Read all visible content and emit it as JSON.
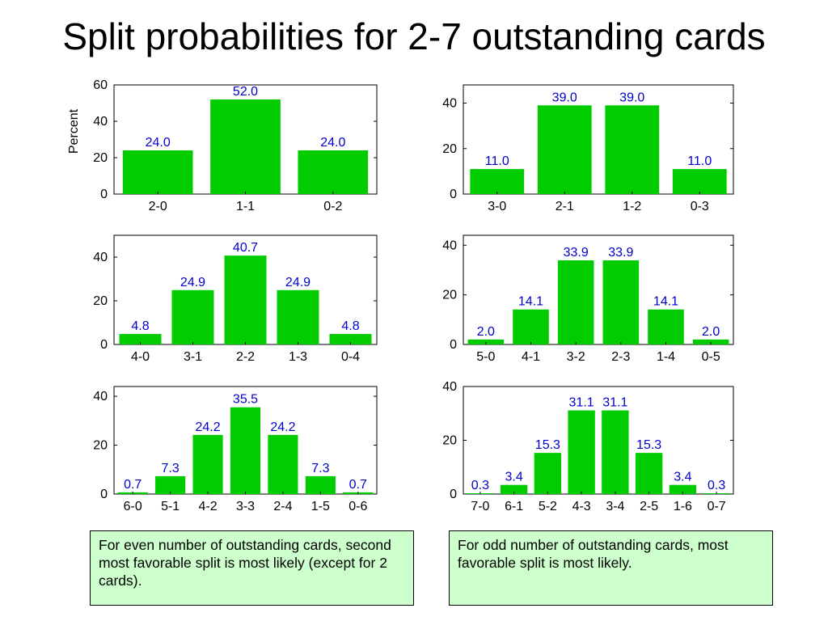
{
  "title": "Split probabilities for 2-7 outstanding cards",
  "colors": {
    "bar": "#00cc00",
    "value_label": "#0000cc",
    "axis": "#000000"
  },
  "notes": {
    "even": "For even number of outstanding cards, second most favorable split is most likely (except for 2 cards).",
    "odd": "For odd number of outstanding cards, most favorable split is most likely."
  },
  "chart_data": [
    {
      "type": "bar",
      "title": "",
      "xlabel": "",
      "ylabel": "Percent",
      "categories": [
        "2-0",
        "1-1",
        "0-2"
      ],
      "values": [
        24.0,
        52.0,
        24.0
      ],
      "value_labels": [
        "24.0",
        "52.0",
        "24.0"
      ],
      "ylim": [
        0,
        60
      ],
      "yticks": [
        0,
        20,
        40,
        60
      ],
      "grid": false
    },
    {
      "type": "bar",
      "title": "",
      "xlabel": "",
      "ylabel": "",
      "categories": [
        "3-0",
        "2-1",
        "1-2",
        "0-3"
      ],
      "values": [
        11.0,
        39.0,
        39.0,
        11.0
      ],
      "value_labels": [
        "11.0",
        "39.0",
        "39.0",
        "11.0"
      ],
      "ylim": [
        0,
        48
      ],
      "yticks": [
        0,
        20,
        40
      ],
      "grid": false
    },
    {
      "type": "bar",
      "title": "",
      "xlabel": "",
      "ylabel": "",
      "categories": [
        "4-0",
        "3-1",
        "2-2",
        "1-3",
        "0-4"
      ],
      "values": [
        4.8,
        24.9,
        40.7,
        24.9,
        4.8
      ],
      "value_labels": [
        "4.8",
        "24.9",
        "40.7",
        "24.9",
        "4.8"
      ],
      "ylim": [
        0,
        50
      ],
      "yticks": [
        0,
        20,
        40
      ],
      "grid": false
    },
    {
      "type": "bar",
      "title": "",
      "xlabel": "",
      "ylabel": "",
      "categories": [
        "5-0",
        "4-1",
        "3-2",
        "2-3",
        "1-4",
        "0-5"
      ],
      "values": [
        2.0,
        14.1,
        33.9,
        33.9,
        14.1,
        2.0
      ],
      "value_labels": [
        "2.0",
        "14.1",
        "33.9",
        "33.9",
        "14.1",
        "2.0"
      ],
      "ylim": [
        0,
        44
      ],
      "yticks": [
        0,
        20,
        40
      ],
      "grid": false
    },
    {
      "type": "bar",
      "title": "",
      "xlabel": "",
      "ylabel": "",
      "categories": [
        "6-0",
        "5-1",
        "4-2",
        "3-3",
        "2-4",
        "1-5",
        "0-6"
      ],
      "values": [
        0.7,
        7.3,
        24.2,
        35.5,
        24.2,
        7.3,
        0.7
      ],
      "value_labels": [
        "0.7",
        "7.3",
        "24.2",
        "35.5",
        "24.2",
        "7.3",
        "0.7"
      ],
      "ylim": [
        0,
        44
      ],
      "yticks": [
        0,
        20,
        40
      ],
      "grid": false
    },
    {
      "type": "bar",
      "title": "",
      "xlabel": "",
      "ylabel": "",
      "categories": [
        "7-0",
        "6-1",
        "5-2",
        "4-3",
        "3-4",
        "2-5",
        "1-6",
        "0-7"
      ],
      "values": [
        0.3,
        3.4,
        15.3,
        31.1,
        31.1,
        15.3,
        3.4,
        0.3
      ],
      "value_labels": [
        "0.3",
        "3.4",
        "15.3",
        "31.1",
        "31.1",
        "15.3",
        "3.4",
        "0.3"
      ],
      "ylim": [
        0,
        40
      ],
      "yticks": [
        0,
        20,
        40
      ],
      "grid": false
    }
  ]
}
